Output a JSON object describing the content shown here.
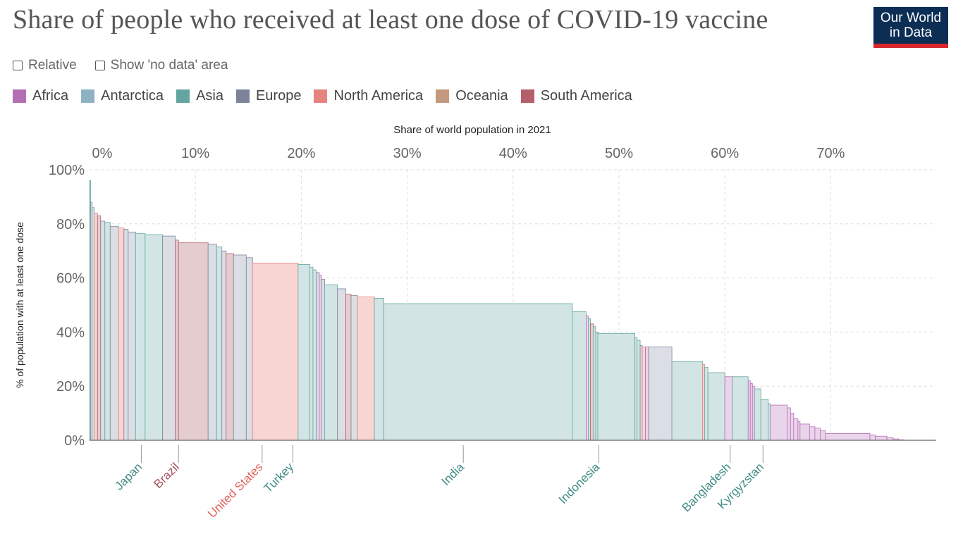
{
  "header": {
    "title": "Share of people who received at least one dose of COVID-19 vaccine",
    "logo_line1": "Our World",
    "logo_line2": "in Data"
  },
  "controls": {
    "relative_label": "Relative",
    "no_data_label": "Show 'no data' area"
  },
  "legend": [
    {
      "label": "Africa",
      "color": "#b46fb4"
    },
    {
      "label": "Antarctica",
      "color": "#8fb1c4"
    },
    {
      "label": "Asia",
      "color": "#63a6a0"
    },
    {
      "label": "Europe",
      "color": "#7d8499"
    },
    {
      "label": "North America",
      "color": "#e5847f"
    },
    {
      "label": "Oceania",
      "color": "#c39a7d"
    },
    {
      "label": "South America",
      "color": "#b55f6a"
    }
  ],
  "chart_data": {
    "type": "area",
    "subtype": "marimekko",
    "title": "Share of people who received at least one dose of COVID-19 vaccine",
    "xlabel": "Share of world population in 2021",
    "ylabel": "% of population with at least one dose",
    "xlim": [
      0,
      80
    ],
    "ylim": [
      0,
      100
    ],
    "x_ticks": [
      "0%",
      "10%",
      "20%",
      "30%",
      "40%",
      "50%",
      "60%",
      "70%"
    ],
    "y_ticks": [
      "0%",
      "20%",
      "40%",
      "60%",
      "80%",
      "100%"
    ],
    "grid": true,
    "fill_colors": {
      "Africa": "#ead4ea",
      "Asia": "#d2e5e4",
      "Europe": "#dcdee5",
      "North America": "#f8d4d3",
      "Oceania": "#ecdfd4",
      "South America": "#e5cccf"
    },
    "bars": [
      {
        "w": 0.1,
        "v": 96,
        "r": "Asia"
      },
      {
        "w": 0.15,
        "v": 88,
        "r": "Europe"
      },
      {
        "w": 0.2,
        "v": 86,
        "r": "Asia"
      },
      {
        "w": 0.3,
        "v": 84,
        "r": "North America"
      },
      {
        "w": 0.3,
        "v": 83,
        "r": "South America"
      },
      {
        "w": 0.4,
        "v": 81,
        "r": "Europe"
      },
      {
        "w": 0.5,
        "v": 80.5,
        "r": "Asia"
      },
      {
        "w": 0.8,
        "v": 79,
        "r": "Europe"
      },
      {
        "w": 0.5,
        "v": 78.5,
        "r": "North America"
      },
      {
        "w": 0.4,
        "v": 78,
        "r": "Europe"
      },
      {
        "w": 0.7,
        "v": 77,
        "r": "Europe"
      },
      {
        "w": 0.9,
        "v": 76.5,
        "r": "Asia"
      },
      {
        "w": 1.65,
        "v": 76,
        "r": "Asia"
      },
      {
        "w": 1.2,
        "v": 75.5,
        "r": "Europe"
      },
      {
        "w": 0.3,
        "v": 74,
        "r": "South America"
      },
      {
        "w": 2.8,
        "v": 73,
        "r": "South America"
      },
      {
        "w": 0.8,
        "v": 72.5,
        "r": "Europe"
      },
      {
        "w": 0.5,
        "v": 71.5,
        "r": "Asia"
      },
      {
        "w": 0.4,
        "v": 70,
        "r": "Europe"
      },
      {
        "w": 0.7,
        "v": 69,
        "r": "South America"
      },
      {
        "w": 1.2,
        "v": 68.5,
        "r": "Europe"
      },
      {
        "w": 0.6,
        "v": 67.5,
        "r": "Europe"
      },
      {
        "w": 4.3,
        "v": 65.5,
        "r": "North America"
      },
      {
        "w": 1.1,
        "v": 65,
        "r": "Asia"
      },
      {
        "w": 0.3,
        "v": 64,
        "r": "Asia"
      },
      {
        "w": 0.3,
        "v": 63,
        "r": "Asia"
      },
      {
        "w": 0.3,
        "v": 62,
        "r": "Europe"
      },
      {
        "w": 0.2,
        "v": 61,
        "r": "Africa"
      },
      {
        "w": 0.3,
        "v": 59.5,
        "r": "Europe"
      },
      {
        "w": 1.2,
        "v": 57.5,
        "r": "Asia"
      },
      {
        "w": 0.8,
        "v": 56,
        "r": "Europe"
      },
      {
        "w": 0.5,
        "v": 54,
        "r": "South America"
      },
      {
        "w": 0.6,
        "v": 53.5,
        "r": "Europe"
      },
      {
        "w": 1.6,
        "v": 53,
        "r": "North America"
      },
      {
        "w": 0.9,
        "v": 52.5,
        "r": "Asia"
      },
      {
        "w": 17.8,
        "v": 50.5,
        "r": "Asia"
      },
      {
        "w": 1.3,
        "v": 47.5,
        "r": "Asia"
      },
      {
        "w": 0.2,
        "v": 46,
        "r": "Africa"
      },
      {
        "w": 0.2,
        "v": 45,
        "r": "Asia"
      },
      {
        "w": 0.3,
        "v": 43,
        "r": "South America"
      },
      {
        "w": 0.2,
        "v": 42,
        "r": "Asia"
      },
      {
        "w": 0.2,
        "v": 40,
        "r": "Asia"
      },
      {
        "w": 3.5,
        "v": 39.5,
        "r": "Asia"
      },
      {
        "w": 0.2,
        "v": 38,
        "r": "Asia"
      },
      {
        "w": 0.3,
        "v": 37,
        "r": "Asia"
      },
      {
        "w": 0.2,
        "v": 35,
        "r": "Europe"
      },
      {
        "w": 0.3,
        "v": 34.5,
        "r": "North America"
      },
      {
        "w": 0.3,
        "v": 34.5,
        "r": "Africa"
      },
      {
        "w": 2.2,
        "v": 34.5,
        "r": "Europe"
      },
      {
        "w": 2.9,
        "v": 29,
        "r": "Asia"
      },
      {
        "w": 0.2,
        "v": 28,
        "r": "North America"
      },
      {
        "w": 0.3,
        "v": 27,
        "r": "Asia"
      },
      {
        "w": 1.6,
        "v": 25,
        "r": "Asia"
      },
      {
        "w": 0.7,
        "v": 23.5,
        "r": "Africa"
      },
      {
        "w": 1.5,
        "v": 23.5,
        "r": "Asia"
      },
      {
        "w": 0.2,
        "v": 22,
        "r": "Africa"
      },
      {
        "w": 0.2,
        "v": 21,
        "r": "Africa"
      },
      {
        "w": 0.2,
        "v": 20,
        "r": "Africa"
      },
      {
        "w": 0.6,
        "v": 19,
        "r": "Asia"
      },
      {
        "w": 0.7,
        "v": 15,
        "r": "Asia"
      },
      {
        "w": 0.2,
        "v": 13.5,
        "r": "Asia"
      },
      {
        "w": 1.6,
        "v": 13,
        "r": "Africa"
      },
      {
        "w": 0.3,
        "v": 12,
        "r": "Africa"
      },
      {
        "w": 0.3,
        "v": 10,
        "r": "Africa"
      },
      {
        "w": 0.4,
        "v": 8,
        "r": "Africa"
      },
      {
        "w": 0.2,
        "v": 7,
        "r": "Africa"
      },
      {
        "w": 0.9,
        "v": 6,
        "r": "Africa"
      },
      {
        "w": 0.5,
        "v": 5,
        "r": "Africa"
      },
      {
        "w": 0.5,
        "v": 4.5,
        "r": "Africa"
      },
      {
        "w": 0.5,
        "v": 3.5,
        "r": "Africa"
      },
      {
        "w": 4.2,
        "v": 2.5,
        "r": "Africa"
      },
      {
        "w": 0.5,
        "v": 2,
        "r": "Africa"
      },
      {
        "w": 1.1,
        "v": 1.5,
        "r": "Africa"
      },
      {
        "w": 0.6,
        "v": 1,
        "r": "Africa"
      },
      {
        "w": 0.5,
        "v": 0.5,
        "r": "Africa"
      },
      {
        "w": 0.5,
        "v": 0.2,
        "r": "Africa"
      }
    ],
    "annotations": [
      {
        "label": "Japan",
        "x": 4.9,
        "color": "#3f8a85"
      },
      {
        "label": "Brazil",
        "x": 8.4,
        "color": "#a8505d"
      },
      {
        "label": "United States",
        "x": 16.3,
        "color": "#e0605b"
      },
      {
        "label": "Turkey",
        "x": 19.2,
        "color": "#3f8a85"
      },
      {
        "label": "India",
        "x": 35.3,
        "color": "#3f8a85"
      },
      {
        "label": "Indonesia",
        "x": 48.1,
        "color": "#3f8a85"
      },
      {
        "label": "Bangladesh",
        "x": 60.5,
        "color": "#3f8a85"
      },
      {
        "label": "Kyrgyzstan",
        "x": 63.6,
        "color": "#3f8a85"
      }
    ]
  }
}
